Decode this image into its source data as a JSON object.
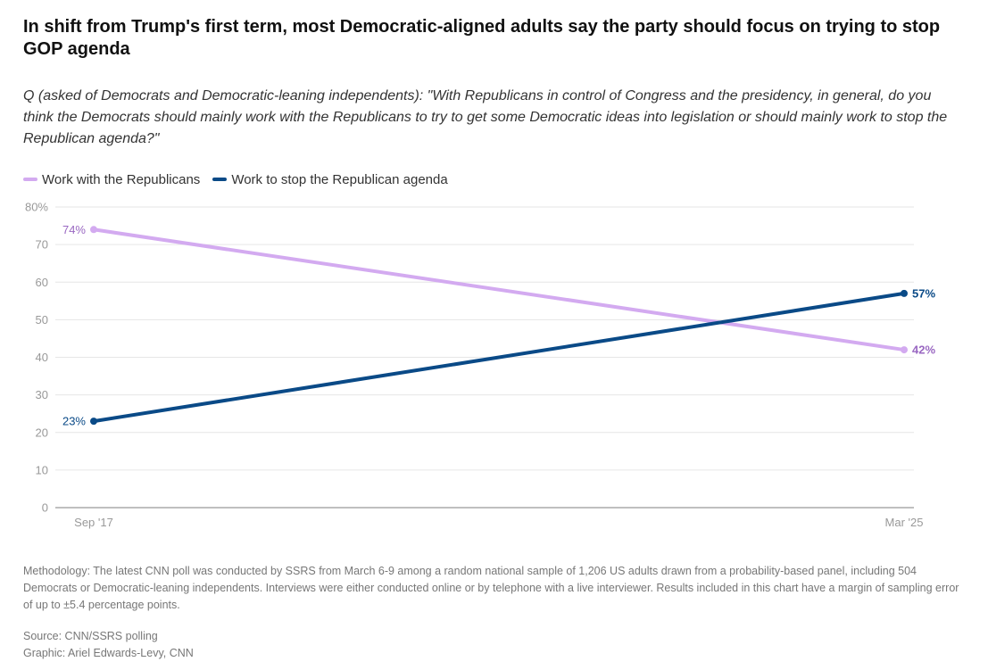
{
  "title": "In shift from Trump's first term, most Democratic-aligned adults say the party should focus on trying to stop GOP agenda",
  "subtitle": "Q (asked of Democrats and Democratic-leaning independents): \"With Republicans in control of Congress and the presidency, in general, do you think the Democrats should mainly work with the Republicans to try to get some Democratic ideas into legislation or should mainly work to stop the Republican agenda?\"",
  "chart_data": {
    "type": "line",
    "x": [
      "Sep '17",
      "Mar '25"
    ],
    "ylim": [
      0,
      80
    ],
    "yticks": [
      0,
      10,
      20,
      30,
      40,
      50,
      60,
      70,
      80
    ],
    "ytick_labels": [
      "0",
      "10",
      "20",
      "30",
      "40",
      "50",
      "60",
      "70",
      "80%"
    ],
    "grid": true,
    "legend_position": "top-left",
    "series": [
      {
        "name": "Work with the Republicans",
        "color": "#d3aaf0",
        "label_color": "#9a68c2",
        "values": [
          74,
          42
        ],
        "labels": [
          "74%",
          "42%"
        ]
      },
      {
        "name": "Work to stop the Republican agenda",
        "color": "#0a4a87",
        "label_color": "#0a4a87",
        "values": [
          23,
          57
        ],
        "labels": [
          "23%",
          "57%"
        ]
      }
    ]
  },
  "methodology": "Methodology: The latest CNN poll was conducted by SSRS from March 6-9 among a random national sample of 1,206 US adults drawn from a probability-based panel, including 504 Democrats or Democratic-leaning independents. Interviews were either conducted online or by telephone with a live interviewer. Results included in this chart have a margin of sampling error of up to ±5.4 percentage points.",
  "source": "Source: CNN/SSRS polling",
  "graphic": "Graphic: Ariel Edwards-Levy, CNN"
}
